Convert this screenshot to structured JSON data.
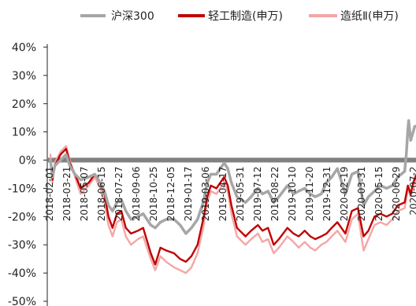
{
  "chart_data": {
    "type": "line",
    "title": "",
    "xlabel": "",
    "ylabel": "",
    "ylim": [
      -0.5,
      0.4
    ],
    "y_ticks": [
      "40%",
      "30%",
      "20%",
      "10%",
      "0%",
      "-10%",
      "-20%",
      "-30%",
      "-40%",
      "-50%"
    ],
    "x_range": [
      "2018-02-01",
      "2020-07-31"
    ],
    "x_ticks": [
      "2018-02-01",
      "2018-03-21",
      "2018-05-07",
      "2018-06-15",
      "2018-07-27",
      "2018-09-06",
      "2018-10-25",
      "2018-12-05",
      "2019-01-17",
      "2019-03-06",
      "2019-04-17",
      "2019-05-31",
      "2019-07-12",
      "2019-08-22",
      "2019-10-10",
      "2019-11-20",
      "2019-12-31",
      "2020-02-19",
      "2020-03-31",
      "2020-05-15",
      "2020-06-29",
      "2020-07-2"
    ],
    "grid": false,
    "legend_position": "top",
    "series": [
      {
        "name": "沪深300",
        "color": "#a6a6a6",
        "points": [
          [
            "2018-02-01",
            0.0
          ],
          [
            "2018-02-06",
            -0.06
          ],
          [
            "2018-02-12",
            -0.02
          ],
          [
            "2018-02-26",
            0.0
          ],
          [
            "2018-03-12",
            0.02
          ],
          [
            "2018-03-21",
            -0.02
          ],
          [
            "2018-04-03",
            -0.05
          ],
          [
            "2018-04-17",
            -0.07
          ],
          [
            "2018-05-07",
            -0.06
          ],
          [
            "2018-05-22",
            -0.05
          ],
          [
            "2018-06-05",
            -0.08
          ],
          [
            "2018-06-15",
            -0.11
          ],
          [
            "2018-06-25",
            -0.16
          ],
          [
            "2018-07-05",
            -0.18
          ],
          [
            "2018-07-16",
            -0.15
          ],
          [
            "2018-07-27",
            -0.14
          ],
          [
            "2018-08-07",
            -0.18
          ],
          [
            "2018-08-20",
            -0.21
          ],
          [
            "2018-09-06",
            -0.2
          ],
          [
            "2018-09-19",
            -0.19
          ],
          [
            "2018-10-08",
            -0.23
          ],
          [
            "2018-10-19",
            -0.24
          ],
          [
            "2018-11-01",
            -0.22
          ],
          [
            "2018-11-15",
            -0.21
          ],
          [
            "2018-12-05",
            -0.21
          ],
          [
            "2018-12-20",
            -0.23
          ],
          [
            "2019-01-03",
            -0.26
          ],
          [
            "2019-01-17",
            -0.24
          ],
          [
            "2019-02-01",
            -0.21
          ],
          [
            "2019-02-15",
            -0.15
          ],
          [
            "2019-02-25",
            -0.08
          ],
          [
            "2019-03-06",
            -0.05
          ],
          [
            "2019-03-20",
            -0.05
          ],
          [
            "2019-04-08",
            -0.01
          ],
          [
            "2019-04-17",
            -0.03
          ],
          [
            "2019-04-26",
            -0.08
          ],
          [
            "2019-05-10",
            -0.13
          ],
          [
            "2019-05-31",
            -0.15
          ],
          [
            "2019-06-14",
            -0.13
          ],
          [
            "2019-07-01",
            -0.1
          ],
          [
            "2019-07-12",
            -0.12
          ],
          [
            "2019-07-26",
            -0.11
          ],
          [
            "2019-08-09",
            -0.15
          ],
          [
            "2019-08-22",
            -0.13
          ],
          [
            "2019-09-12",
            -0.09
          ],
          [
            "2019-09-27",
            -0.12
          ],
          [
            "2019-10-10",
            -0.11
          ],
          [
            "2019-10-25",
            -0.1
          ],
          [
            "2019-11-08",
            -0.12
          ],
          [
            "2019-11-20",
            -0.13
          ],
          [
            "2019-12-05",
            -0.12
          ],
          [
            "2019-12-18",
            -0.08
          ],
          [
            "2019-12-31",
            -0.06
          ],
          [
            "2020-01-14",
            -0.03
          ],
          [
            "2020-02-03",
            -0.12
          ],
          [
            "2020-02-19",
            -0.05
          ],
          [
            "2020-03-05",
            -0.04
          ],
          [
            "2020-03-19",
            -0.16
          ],
          [
            "2020-03-31",
            -0.13
          ],
          [
            "2020-04-15",
            -0.11
          ],
          [
            "2020-04-30",
            -0.09
          ],
          [
            "2020-05-15",
            -0.1
          ],
          [
            "2020-05-29",
            -0.09
          ],
          [
            "2020-06-12",
            -0.06
          ],
          [
            "2020-06-29",
            -0.04
          ],
          [
            "2020-07-03",
            0.02
          ],
          [
            "2020-07-07",
            0.11
          ],
          [
            "2020-07-09",
            0.14
          ],
          [
            "2020-07-14",
            0.07
          ],
          [
            "2020-07-20",
            0.1
          ],
          [
            "2020-07-24",
            0.12
          ],
          [
            "2020-07-31",
            0.12
          ]
        ]
      },
      {
        "name": "轻工制造(申万)",
        "color": "#c00000",
        "points": [
          [
            "2018-02-01",
            0.0
          ],
          [
            "2018-02-06",
            -0.07
          ],
          [
            "2018-02-12",
            -0.02
          ],
          [
            "2018-02-26",
            0.02
          ],
          [
            "2018-03-12",
            0.04
          ],
          [
            "2018-03-21",
            -0.01
          ],
          [
            "2018-04-03",
            -0.05
          ],
          [
            "2018-04-17",
            -0.1
          ],
          [
            "2018-05-07",
            -0.08
          ],
          [
            "2018-05-22",
            -0.05
          ],
          [
            "2018-06-05",
            -0.08
          ],
          [
            "2018-06-15",
            -0.12
          ],
          [
            "2018-06-25",
            -0.2
          ],
          [
            "2018-07-05",
            -0.24
          ],
          [
            "2018-07-16",
            -0.19
          ],
          [
            "2018-07-27",
            -0.18
          ],
          [
            "2018-08-07",
            -0.24
          ],
          [
            "2018-08-20",
            -0.26
          ],
          [
            "2018-09-06",
            -0.25
          ],
          [
            "2018-09-19",
            -0.24
          ],
          [
            "2018-10-08",
            -0.33
          ],
          [
            "2018-10-19",
            -0.37
          ],
          [
            "2018-11-01",
            -0.31
          ],
          [
            "2018-11-15",
            -0.32
          ],
          [
            "2018-12-05",
            -0.33
          ],
          [
            "2018-12-20",
            -0.35
          ],
          [
            "2019-01-03",
            -0.36
          ],
          [
            "2019-01-17",
            -0.34
          ],
          [
            "2019-02-01",
            -0.3
          ],
          [
            "2019-02-15",
            -0.21
          ],
          [
            "2019-02-25",
            -0.13
          ],
          [
            "2019-03-06",
            -0.09
          ],
          [
            "2019-03-20",
            -0.1
          ],
          [
            "2019-04-08",
            -0.06
          ],
          [
            "2019-04-17",
            -0.09
          ],
          [
            "2019-04-26",
            -0.16
          ],
          [
            "2019-05-10",
            -0.24
          ],
          [
            "2019-05-31",
            -0.27
          ],
          [
            "2019-06-14",
            -0.25
          ],
          [
            "2019-07-01",
            -0.23
          ],
          [
            "2019-07-12",
            -0.25
          ],
          [
            "2019-07-26",
            -0.24
          ],
          [
            "2019-08-09",
            -0.3
          ],
          [
            "2019-08-22",
            -0.28
          ],
          [
            "2019-09-12",
            -0.24
          ],
          [
            "2019-09-27",
            -0.26
          ],
          [
            "2019-10-10",
            -0.27
          ],
          [
            "2019-10-25",
            -0.25
          ],
          [
            "2019-11-08",
            -0.27
          ],
          [
            "2019-11-20",
            -0.28
          ],
          [
            "2019-12-05",
            -0.27
          ],
          [
            "2019-12-18",
            -0.26
          ],
          [
            "2019-12-31",
            -0.24
          ],
          [
            "2020-01-14",
            -0.22
          ],
          [
            "2020-02-03",
            -0.26
          ],
          [
            "2020-02-19",
            -0.18
          ],
          [
            "2020-03-05",
            -0.17
          ],
          [
            "2020-03-19",
            -0.27
          ],
          [
            "2020-03-31",
            -0.25
          ],
          [
            "2020-04-15",
            -0.2
          ],
          [
            "2020-04-30",
            -0.19
          ],
          [
            "2020-05-15",
            -0.2
          ],
          [
            "2020-05-29",
            -0.19
          ],
          [
            "2020-06-12",
            -0.16
          ],
          [
            "2020-06-29",
            -0.15
          ],
          [
            "2020-07-07",
            -0.09
          ],
          [
            "2020-07-14",
            -0.12
          ],
          [
            "2020-07-20",
            -0.08
          ],
          [
            "2020-07-31",
            -0.04
          ]
        ]
      },
      {
        "name": "造纸Ⅱ(申万)",
        "color": "#f4a6a6",
        "points": [
          [
            "2018-02-01",
            0.02
          ],
          [
            "2018-02-06",
            -0.08
          ],
          [
            "2018-02-12",
            -0.01
          ],
          [
            "2018-02-26",
            0.03
          ],
          [
            "2018-03-12",
            0.05
          ],
          [
            "2018-03-21",
            0.0
          ],
          [
            "2018-04-03",
            -0.06
          ],
          [
            "2018-04-17",
            -0.12
          ],
          [
            "2018-05-07",
            -0.09
          ],
          [
            "2018-05-22",
            -0.06
          ],
          [
            "2018-06-05",
            -0.1
          ],
          [
            "2018-06-15",
            -0.15
          ],
          [
            "2018-06-25",
            -0.23
          ],
          [
            "2018-07-05",
            -0.27
          ],
          [
            "2018-07-16",
            -0.22
          ],
          [
            "2018-07-27",
            -0.21
          ],
          [
            "2018-08-07",
            -0.27
          ],
          [
            "2018-08-20",
            -0.3
          ],
          [
            "2018-09-06",
            -0.28
          ],
          [
            "2018-09-19",
            -0.27
          ],
          [
            "2018-10-08",
            -0.35
          ],
          [
            "2018-10-19",
            -0.39
          ],
          [
            "2018-11-01",
            -0.34
          ],
          [
            "2018-11-15",
            -0.36
          ],
          [
            "2018-12-05",
            -0.38
          ],
          [
            "2018-12-20",
            -0.39
          ],
          [
            "2019-01-03",
            -0.4
          ],
          [
            "2019-01-17",
            -0.38
          ],
          [
            "2019-02-01",
            -0.33
          ],
          [
            "2019-02-15",
            -0.24
          ],
          [
            "2019-02-25",
            -0.15
          ],
          [
            "2019-03-06",
            -0.11
          ],
          [
            "2019-03-20",
            -0.12
          ],
          [
            "2019-04-08",
            -0.08
          ],
          [
            "2019-04-17",
            -0.11
          ],
          [
            "2019-04-26",
            -0.19
          ],
          [
            "2019-05-10",
            -0.27
          ],
          [
            "2019-05-31",
            -0.3
          ],
          [
            "2019-06-14",
            -0.28
          ],
          [
            "2019-07-01",
            -0.26
          ],
          [
            "2019-07-12",
            -0.29
          ],
          [
            "2019-07-26",
            -0.28
          ],
          [
            "2019-08-09",
            -0.33
          ],
          [
            "2019-08-22",
            -0.31
          ],
          [
            "2019-09-12",
            -0.27
          ],
          [
            "2019-09-27",
            -0.29
          ],
          [
            "2019-10-10",
            -0.31
          ],
          [
            "2019-10-25",
            -0.29
          ],
          [
            "2019-11-08",
            -0.31
          ],
          [
            "2019-11-20",
            -0.32
          ],
          [
            "2019-12-05",
            -0.3
          ],
          [
            "2019-12-18",
            -0.29
          ],
          [
            "2019-12-31",
            -0.27
          ],
          [
            "2020-01-14",
            -0.25
          ],
          [
            "2020-02-03",
            -0.29
          ],
          [
            "2020-02-19",
            -0.21
          ],
          [
            "2020-03-05",
            -0.19
          ],
          [
            "2020-03-19",
            -0.32
          ],
          [
            "2020-03-31",
            -0.28
          ],
          [
            "2020-04-15",
            -0.23
          ],
          [
            "2020-04-30",
            -0.22
          ],
          [
            "2020-05-15",
            -0.23
          ],
          [
            "2020-05-29",
            -0.21
          ],
          [
            "2020-06-12",
            -0.18
          ],
          [
            "2020-06-29",
            -0.17
          ],
          [
            "2020-07-07",
            -0.1
          ],
          [
            "2020-07-14",
            -0.13
          ],
          [
            "2020-07-20",
            -0.09
          ],
          [
            "2020-07-31",
            -0.06
          ]
        ]
      }
    ]
  }
}
